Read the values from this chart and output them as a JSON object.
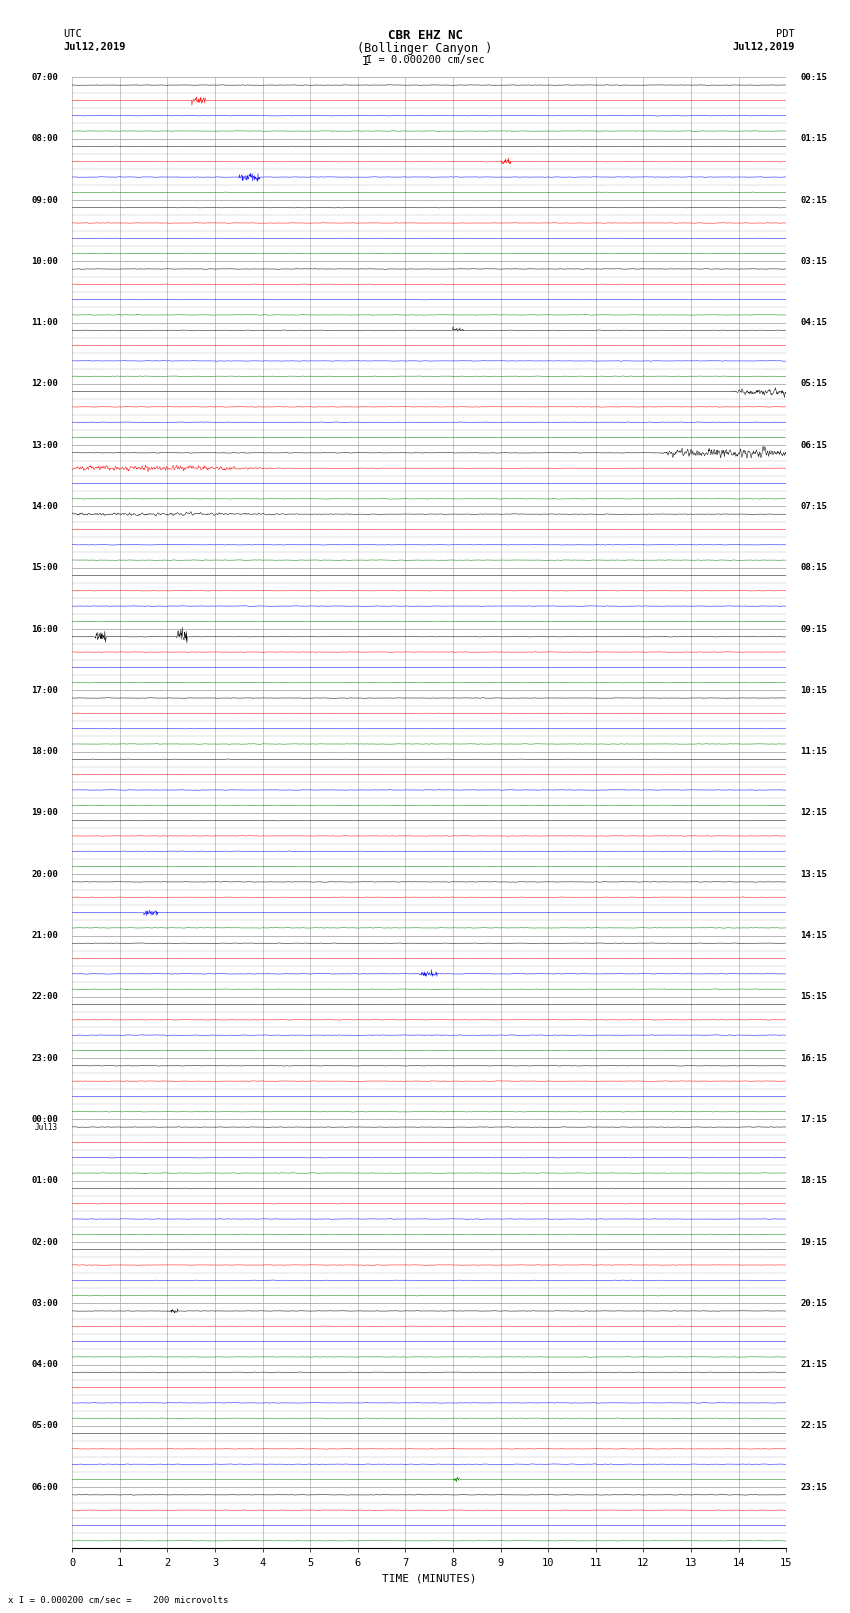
{
  "title_line1": "CBR EHZ NC",
  "title_line2": "(Bollinger Canyon )",
  "scale_label": "I = 0.000200 cm/sec",
  "left_header": "UTC",
  "left_date": "Jul12,2019",
  "right_header": "PDT",
  "right_date": "Jul12,2019",
  "bottom_label": "TIME (MINUTES)",
  "bottom_footnote": "x I = 0.000200 cm/sec =    200 microvolts",
  "utc_labels": [
    "07:00",
    "08:00",
    "09:00",
    "10:00",
    "11:00",
    "12:00",
    "13:00",
    "14:00",
    "15:00",
    "16:00",
    "17:00",
    "18:00",
    "19:00",
    "20:00",
    "21:00",
    "22:00",
    "23:00",
    "Jul13\n00:00",
    "01:00",
    "02:00",
    "03:00",
    "04:00",
    "05:00",
    "06:00"
  ],
  "pdt_labels": [
    "00:15",
    "01:15",
    "02:15",
    "03:15",
    "04:15",
    "05:15",
    "06:15",
    "07:15",
    "08:15",
    "09:15",
    "10:15",
    "11:15",
    "12:15",
    "13:15",
    "14:15",
    "15:15",
    "16:15",
    "17:15",
    "18:15",
    "19:15",
    "20:15",
    "21:15",
    "22:15",
    "23:15"
  ],
  "n_rows": 24,
  "traces_per_row": 4,
  "row_colors": [
    "black",
    "red",
    "blue",
    "green"
  ],
  "x_min": 0,
  "x_max": 15,
  "x_ticks": [
    0,
    1,
    2,
    3,
    4,
    5,
    6,
    7,
    8,
    9,
    10,
    11,
    12,
    13,
    14,
    15
  ],
  "background_color": "white",
  "grid_color": "#999999",
  "noise_amp": 0.025,
  "fig_width": 8.5,
  "fig_height": 16.13
}
